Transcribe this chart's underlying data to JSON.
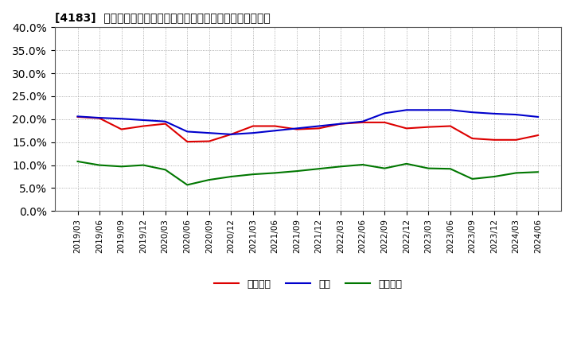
{
  "title": "[4183]  売上債権、在庫、買入債務の総資産に対する比率の推移",
  "dates": [
    "2019/03",
    "2019/06",
    "2019/09",
    "2019/12",
    "2020/03",
    "2020/06",
    "2020/09",
    "2020/12",
    "2021/03",
    "2021/06",
    "2021/09",
    "2021/12",
    "2022/03",
    "2022/06",
    "2022/09",
    "2022/12",
    "2023/03",
    "2023/06",
    "2023/09",
    "2023/12",
    "2024/03",
    "2024/06"
  ],
  "urikake": [
    20.5,
    20.2,
    17.8,
    18.5,
    19.0,
    15.1,
    15.2,
    16.7,
    18.5,
    18.5,
    17.8,
    18.0,
    19.0,
    19.3,
    19.3,
    18.0,
    18.3,
    18.5,
    15.8,
    15.5,
    15.5,
    16.5
  ],
  "zaiko": [
    20.6,
    20.3,
    20.1,
    19.8,
    19.5,
    17.3,
    17.0,
    16.7,
    17.0,
    17.5,
    18.0,
    18.5,
    19.0,
    19.5,
    21.3,
    22.0,
    22.0,
    22.0,
    21.5,
    21.2,
    21.0,
    20.5
  ],
  "kainyu": [
    10.8,
    10.0,
    9.7,
    10.0,
    9.0,
    5.7,
    6.8,
    7.5,
    8.0,
    8.3,
    8.7,
    9.2,
    9.7,
    10.1,
    9.3,
    10.3,
    9.3,
    9.2,
    7.0,
    7.5,
    8.3,
    8.5
  ],
  "urikake_color": "#dd0000",
  "zaiko_color": "#0000cc",
  "kainyu_color": "#007700",
  "ylim": [
    0,
    40
  ],
  "yticks": [
    0,
    5,
    10,
    15,
    20,
    25,
    30,
    35,
    40
  ],
  "background_color": "#ffffff",
  "grid_color": "#999999",
  "legend_labels": [
    "売上債権",
    "在庫",
    "買入債務"
  ]
}
